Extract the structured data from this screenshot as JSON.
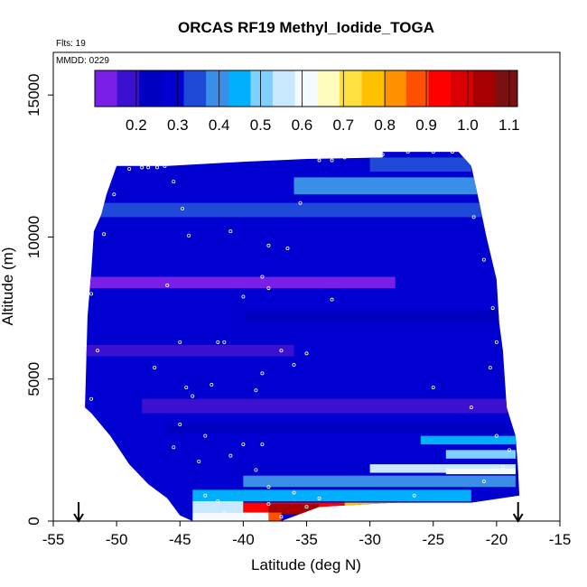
{
  "chart_data": {
    "type": "heatmap",
    "title": "ORCAS RF19 Methyl_Iodide_TOGA",
    "flts_label": "Flts: 19",
    "mmdd_label": "MMDD: 0229",
    "xlabel": "Latitude (deg N)",
    "ylabel": "Altitude (m)",
    "xlim": [
      -55,
      -15
    ],
    "ylim": [
      0,
      16500
    ],
    "x_ticks": [
      "-55",
      "-50",
      "-45",
      "-40",
      "-35",
      "-30",
      "-25",
      "-20",
      "-15"
    ],
    "y_ticks": [
      "0",
      "5000",
      "10000",
      "15000"
    ],
    "y_tick_values": [
      0,
      5000,
      10000,
      15000
    ],
    "x_tick_values": [
      -55,
      -50,
      -45,
      -40,
      -35,
      -30,
      -25,
      -20,
      -15
    ],
    "colorbar": {
      "range": [
        0.1,
        1.12
      ],
      "tick_labels": [
        "0.2",
        "0.3",
        "0.4",
        "0.5",
        "0.6",
        "0.7",
        "0.8",
        "0.9",
        "1.0",
        "1.1"
      ],
      "tick_values": [
        0.2,
        0.3,
        0.4,
        0.5,
        0.6,
        0.7,
        0.8,
        0.9,
        1.0,
        1.1
      ],
      "colors": [
        "#7a1fe8",
        "#3b10d0",
        "#0000c0",
        "#0000d0",
        "#1f4ad8",
        "#3a8ee8",
        "#00b0ff",
        "#80d0ff",
        "#c8e8ff",
        "#f4fbff",
        "#fffcc0",
        "#ffe040",
        "#ffc000",
        "#ff9000",
        "#ff5000",
        "#ff0000",
        "#d80000",
        "#a80000",
        "#7a1010"
      ]
    },
    "domain_boundary": [
      [
        -52.5,
        4000
      ],
      [
        -52.3,
        7200
      ],
      [
        -52.0,
        8800
      ],
      [
        -51.8,
        10200
      ],
      [
        -51.2,
        10800
      ],
      [
        -50.8,
        11500
      ],
      [
        -50.0,
        12500
      ],
      [
        -46.0,
        12500
      ],
      [
        -40.0,
        12650
      ],
      [
        -35.0,
        12750
      ],
      [
        -29.0,
        12800
      ],
      [
        -29.0,
        13000
      ],
      [
        -23.0,
        13000
      ],
      [
        -22.0,
        12500
      ],
      [
        -21.5,
        11500
      ],
      [
        -20.8,
        10000
      ],
      [
        -20.0,
        8500
      ],
      [
        -19.8,
        7000
      ],
      [
        -19.5,
        6000
      ],
      [
        -19.2,
        4000
      ],
      [
        -18.5,
        3000
      ],
      [
        -18.3,
        1800
      ],
      [
        -18.2,
        900
      ],
      [
        -22.0,
        650
      ],
      [
        -28.0,
        650
      ],
      [
        -34.0,
        500
      ],
      [
        -37.0,
        0
      ],
      [
        -44.0,
        0
      ],
      [
        -45.0,
        200
      ],
      [
        -46.0,
        800
      ],
      [
        -47.5,
        1300
      ],
      [
        -49.0,
        2000
      ],
      [
        -50.5,
        3000
      ],
      [
        -52.0,
        3800
      ]
    ],
    "background_value": 0.3,
    "bands": [
      {
        "x0": -52.5,
        "x1": -28,
        "y0": 8200,
        "y1": 8600,
        "v": 0.15
      },
      {
        "x0": -52.5,
        "x1": -36,
        "y0": 5800,
        "y1": 6200,
        "v": 0.2
      },
      {
        "x0": -40,
        "x1": -19,
        "y0": 7000,
        "y1": 7400,
        "v": 0.22
      },
      {
        "x0": -48,
        "x1": -19,
        "y0": 3800,
        "y1": 4300,
        "v": 0.18
      },
      {
        "x0": -46,
        "x1": -19,
        "y0": 3100,
        "y1": 3400,
        "v": 0.22
      },
      {
        "x0": -52,
        "x1": -20,
        "y0": 10700,
        "y1": 11200,
        "v": 0.35
      },
      {
        "x0": -36,
        "x1": -20,
        "y0": 11500,
        "y1": 12100,
        "v": 0.4
      },
      {
        "x0": -30,
        "x1": -22,
        "y0": 12300,
        "y1": 12800,
        "v": 0.36
      },
      {
        "x0": -26,
        "x1": -18.5,
        "y0": 2700,
        "y1": 3000,
        "v": 0.45
      },
      {
        "x0": -24,
        "x1": -18.5,
        "y0": 2200,
        "y1": 2500,
        "v": 0.48
      },
      {
        "x0": -30,
        "x1": -18.5,
        "y0": 1700,
        "y1": 2000,
        "v": 0.55
      },
      {
        "x0": -24,
        "x1": -18.5,
        "y0": 1650,
        "y1": 1850,
        "v": 0.62
      },
      {
        "x0": -40,
        "x1": -18.5,
        "y0": 1200,
        "y1": 1600,
        "v": 0.4
      },
      {
        "x0": -44,
        "x1": -22,
        "y0": 700,
        "y1": 1100,
        "v": 0.45
      },
      {
        "x0": -44,
        "x1": -40,
        "y0": 300,
        "y1": 700,
        "v": 0.55
      },
      {
        "x0": -40,
        "x1": -32,
        "y0": 300,
        "y1": 650,
        "v": 0.95
      },
      {
        "x0": -38,
        "x1": -34,
        "y0": 250,
        "y1": 600,
        "v": 1.05
      },
      {
        "x0": -32,
        "x1": -26,
        "y0": 450,
        "y1": 650,
        "v": 0.78
      },
      {
        "x0": -26,
        "x1": -22,
        "y0": 500,
        "y1": 650,
        "v": 0.68
      },
      {
        "x0": -44,
        "x1": -38,
        "y0": 0,
        "y1": 300,
        "v": 0.62
      },
      {
        "x0": -38,
        "x1": -37,
        "y0": 0,
        "y1": 300,
        "v": 0.9
      }
    ],
    "sample_points": [
      [
        -47.5,
        12450
      ],
      [
        -46.8,
        12450
      ],
      [
        -46.2,
        12500
      ],
      [
        -45.5,
        11950
      ],
      [
        -44.8,
        11000
      ],
      [
        -44.3,
        10050
      ],
      [
        -41.0,
        10200
      ],
      [
        -38.0,
        9700
      ],
      [
        -36.5,
        9600
      ],
      [
        -35.5,
        11200
      ],
      [
        -34.0,
        12700
      ],
      [
        -33.0,
        12700
      ],
      [
        -32.0,
        12800
      ],
      [
        -29.0,
        12900
      ],
      [
        -27.0,
        13000
      ],
      [
        -25.0,
        13000
      ],
      [
        -23.5,
        13000
      ],
      [
        -21.8,
        10700
      ],
      [
        -21.0,
        9200
      ],
      [
        -20.3,
        7500
      ],
      [
        -38.5,
        8600
      ],
      [
        -38.0,
        8200
      ],
      [
        -40.0,
        7900
      ],
      [
        -46.0,
        8300
      ],
      [
        -33.0,
        7800
      ],
      [
        -45.0,
        6300
      ],
      [
        -42.0,
        6300
      ],
      [
        -41.5,
        6300
      ],
      [
        -37.0,
        6000
      ],
      [
        -35.0,
        5900
      ],
      [
        -36.0,
        5500
      ],
      [
        -38.5,
        5200
      ],
      [
        -42.5,
        4800
      ],
      [
        -44.5,
        4700
      ],
      [
        -47.0,
        5400
      ],
      [
        -44.0,
        4400
      ],
      [
        -39.0,
        4600
      ],
      [
        -45.0,
        3400
      ],
      [
        -45.5,
        2600
      ],
      [
        -43.0,
        3000
      ],
      [
        -40.0,
        2700
      ],
      [
        -38.5,
        2700
      ],
      [
        -41.0,
        2300
      ],
      [
        -43.5,
        2100
      ],
      [
        -39.0,
        1800
      ],
      [
        -38.0,
        1200
      ],
      [
        -36.0,
        1000
      ],
      [
        -34.0,
        800
      ],
      [
        -43.0,
        900
      ],
      [
        -42.0,
        700
      ],
      [
        -38.0,
        600
      ],
      [
        -35.0,
        500
      ],
      [
        -41.5,
        300
      ],
      [
        -39.5,
        150
      ],
      [
        -37.0,
        150
      ],
      [
        -26.5,
        900
      ],
      [
        -21.0,
        1400
      ],
      [
        -19.5,
        1900
      ],
      [
        -19.0,
        2500
      ],
      [
        -20.0,
        3000
      ],
      [
        -25.0,
        4700
      ],
      [
        -22.0,
        4000
      ],
      [
        -20.5,
        5400
      ],
      [
        -20.0,
        6300
      ],
      [
        -52.0,
        4300
      ],
      [
        -51.5,
        6000
      ],
      [
        -52.0,
        8000
      ],
      [
        -51.0,
        10100
      ],
      [
        -50.2,
        11500
      ],
      [
        -49.0,
        12400
      ],
      [
        -48.0,
        12450
      ]
    ],
    "flight_arrows_x": [
      -53,
      -18.3
    ]
  }
}
